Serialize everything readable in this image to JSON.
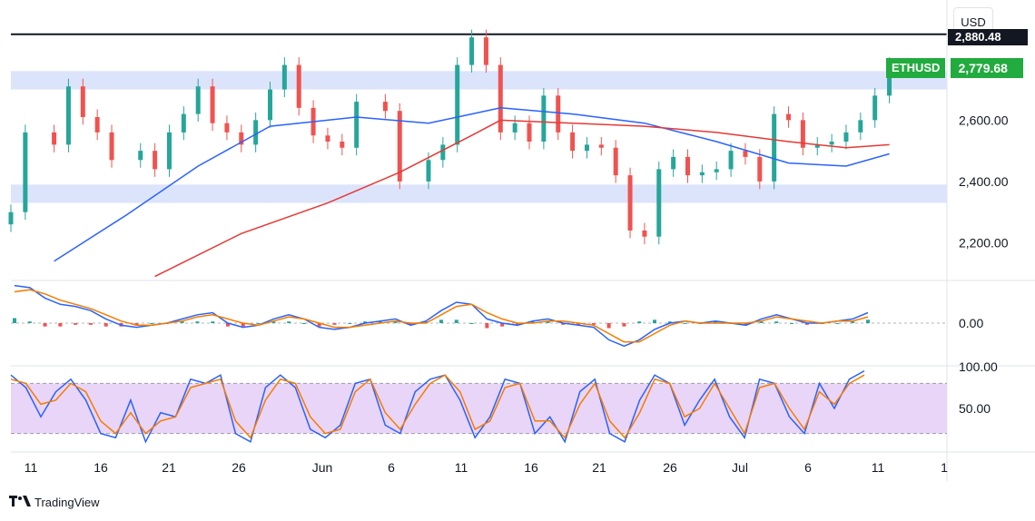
{
  "symbol": "ETHUSD",
  "currency": "USD",
  "last_price_label": "2,779.68",
  "resistance_label": "2,880.48",
  "brand": "TradingView",
  "colors": {
    "up": "#26a69a",
    "down": "#ef5350",
    "tag": "#22ab3f",
    "ma_fast": "#2962ff",
    "ma_slow": "#e53935",
    "zone": "#dbe4fb",
    "stoch_fill": "#e9d5f8"
  },
  "chart_data": [
    {
      "type": "candlestick",
      "title": "ETHUSD",
      "y_ticks": [
        "2,200.00",
        "2,400.00",
        "2,600.00"
      ],
      "ylim": [
        2080,
        2980
      ],
      "x_ticks": [
        "11",
        "16",
        "21",
        "26",
        "Jun",
        "6",
        "11",
        "16",
        "21",
        "26",
        "Jul",
        "6",
        "11",
        "1"
      ],
      "resistance_line": 2880,
      "zones": [
        {
          "from": 2700,
          "to": 2760
        },
        {
          "from": 2330,
          "to": 2390
        }
      ],
      "close_series": [
        {
          "date": "May 10",
          "close": 2300
        },
        {
          "date": "May 11",
          "close": 2560
        },
        {
          "date": "May 13",
          "close": 2520
        },
        {
          "date": "May 14",
          "close": 2710
        },
        {
          "date": "May 15",
          "close": 2610
        },
        {
          "date": "May 16",
          "close": 2560
        },
        {
          "date": "May 17",
          "close": 2470
        },
        {
          "date": "May 19",
          "close": 2500
        },
        {
          "date": "May 20",
          "close": 2440
        },
        {
          "date": "May 21",
          "close": 2560
        },
        {
          "date": "May 22",
          "close": 2620
        },
        {
          "date": "May 23",
          "close": 2710
        },
        {
          "date": "May 24",
          "close": 2590
        },
        {
          "date": "May 25",
          "close": 2560
        },
        {
          "date": "May 26",
          "close": 2520
        },
        {
          "date": "May 27",
          "close": 2600
        },
        {
          "date": "May 28",
          "close": 2700
        },
        {
          "date": "May 29",
          "close": 2780
        },
        {
          "date": "May 30",
          "close": 2640
        },
        {
          "date": "May 31",
          "close": 2550
        },
        {
          "date": "Jun 1",
          "close": 2530
        },
        {
          "date": "Jun 2",
          "close": 2510
        },
        {
          "date": "Jun 3",
          "close": 2660
        },
        {
          "date": "Jun 5",
          "close": 2630
        },
        {
          "date": "Jun 6",
          "close": 2400
        },
        {
          "date": "Jun 8",
          "close": 2470
        },
        {
          "date": "Jun 9",
          "close": 2520
        },
        {
          "date": "Jun 10",
          "close": 2780
        },
        {
          "date": "Jun 11",
          "close": 2870
        },
        {
          "date": "Jun 12",
          "close": 2780
        },
        {
          "date": "Jun 13",
          "close": 2560
        },
        {
          "date": "Jun 14",
          "close": 2590
        },
        {
          "date": "Jun 15",
          "close": 2530
        },
        {
          "date": "Jun 16",
          "close": 2680
        },
        {
          "date": "Jun 17",
          "close": 2560
        },
        {
          "date": "Jun 18",
          "close": 2500
        },
        {
          "date": "Jun 19",
          "close": 2520
        },
        {
          "date": "Jun 20",
          "close": 2510
        },
        {
          "date": "Jun 21",
          "close": 2420
        },
        {
          "date": "Jun 22",
          "close": 2240
        },
        {
          "date": "Jun 23",
          "close": 2220
        },
        {
          "date": "Jun 24",
          "close": 2440
        },
        {
          "date": "Jun 25",
          "close": 2480
        },
        {
          "date": "Jun 26",
          "close": 2420
        },
        {
          "date": "Jun 27",
          "close": 2430
        },
        {
          "date": "Jun 28",
          "close": 2440
        },
        {
          "date": "Jun 29",
          "close": 2500
        },
        {
          "date": "Jun 30",
          "close": 2480
        },
        {
          "date": "Jul 1",
          "close": 2400
        },
        {
          "date": "Jul 2",
          "close": 2620
        },
        {
          "date": "Jul 3",
          "close": 2600
        },
        {
          "date": "Jul 4",
          "close": 2510
        },
        {
          "date": "Jul 5",
          "close": 2520
        },
        {
          "date": "Jul 6",
          "close": 2530
        },
        {
          "date": "Jul 7",
          "close": 2560
        },
        {
          "date": "Jul 8",
          "close": 2600
        },
        {
          "date": "Jul 9",
          "close": 2680
        },
        {
          "date": "Jul 10",
          "close": 2779.68
        }
      ],
      "series": [
        {
          "color": "#2962ff",
          "points": [
            {
              "date": "May 13",
              "value": 2140
            },
            {
              "date": "May 18",
              "value": 2290
            },
            {
              "date": "May 23",
              "value": 2450
            },
            {
              "date": "May 28",
              "value": 2580
            },
            {
              "date": "Jun 3",
              "value": 2610
            },
            {
              "date": "Jun 8",
              "value": 2590
            },
            {
              "date": "Jun 11",
              "value": 2620
            },
            {
              "date": "Jun 13",
              "value": 2640
            },
            {
              "date": "Jun 18",
              "value": 2620
            },
            {
              "date": "Jun 23",
              "value": 2590
            },
            {
              "date": "Jun 28",
              "value": 2530
            },
            {
              "date": "Jul 3",
              "value": 2460
            },
            {
              "date": "Jul 7",
              "value": 2450
            },
            {
              "date": "Jul 10",
              "value": 2490
            }
          ]
        },
        {
          "color": "#e53935",
          "points": [
            {
              "date": "May 20",
              "value": 2090
            },
            {
              "date": "May 26",
              "value": 2230
            },
            {
              "date": "Jun 1",
              "value": 2330
            },
            {
              "date": "Jun 6",
              "value": 2430
            },
            {
              "date": "Jun 11",
              "value": 2550
            },
            {
              "date": "Jun 13",
              "value": 2600
            },
            {
              "date": "Jun 18",
              "value": 2590
            },
            {
              "date": "Jun 23",
              "value": 2580
            },
            {
              "date": "Jun 28",
              "value": 2560
            },
            {
              "date": "Jul 3",
              "value": 2530
            },
            {
              "date": "Jul 7",
              "value": 2510
            },
            {
              "date": "Jul 10",
              "value": 2520
            }
          ]
        }
      ]
    },
    {
      "type": "line",
      "y_ticks": [
        "0.00"
      ],
      "ylim": [
        -1,
        1
      ],
      "zero_line": 0,
      "series": [
        {
          "color": "#2962ff",
          "values": [
            0.9,
            0.85,
            0.6,
            0.45,
            0.4,
            0.3,
            0.1,
            -0.05,
            -0.1,
            -0.05,
            0.0,
            0.1,
            0.2,
            0.25,
            0.0,
            -0.1,
            -0.05,
            0.1,
            0.2,
            0.1,
            -0.1,
            -0.15,
            -0.1,
            0.0,
            0.05,
            0.1,
            -0.05,
            0.05,
            0.3,
            0.5,
            0.45,
            0.1,
            0.0,
            -0.05,
            0.05,
            0.1,
            0.0,
            -0.05,
            -0.1,
            -0.4,
            -0.55,
            -0.4,
            -0.15,
            0.0,
            0.05,
            0.0,
            0.05,
            0.0,
            -0.05,
            0.1,
            0.2,
            0.1,
            0.0,
            0.0,
            0.05,
            0.1,
            0.25
          ]
        },
        {
          "color": "#f57c00",
          "values": [
            0.75,
            0.8,
            0.7,
            0.55,
            0.45,
            0.35,
            0.2,
            0.05,
            -0.05,
            -0.05,
            0.0,
            0.05,
            0.15,
            0.2,
            0.1,
            0.0,
            -0.05,
            0.05,
            0.15,
            0.1,
            0.0,
            -0.1,
            -0.1,
            -0.05,
            0.0,
            0.05,
            0.0,
            0.0,
            0.2,
            0.4,
            0.45,
            0.25,
            0.1,
            0.0,
            0.0,
            0.05,
            0.05,
            0.0,
            -0.05,
            -0.25,
            -0.45,
            -0.45,
            -0.25,
            -0.05,
            0.05,
            0.0,
            0.0,
            0.0,
            0.0,
            0.05,
            0.15,
            0.1,
            0.05,
            0.0,
            0.05,
            0.05,
            0.15
          ]
        }
      ]
    },
    {
      "type": "line",
      "y_ticks": [
        "100.00",
        "50.00"
      ],
      "ylim": [
        0,
        100
      ],
      "band": [
        20,
        80
      ],
      "series": [
        {
          "color": "#2962ff",
          "values": [
            90,
            75,
            40,
            70,
            85,
            60,
            20,
            15,
            60,
            10,
            45,
            40,
            85,
            80,
            90,
            20,
            10,
            75,
            90,
            75,
            25,
            15,
            30,
            80,
            85,
            30,
            20,
            70,
            85,
            90,
            60,
            15,
            40,
            85,
            80,
            20,
            40,
            10,
            70,
            85,
            20,
            10,
            60,
            90,
            80,
            30,
            60,
            85,
            40,
            15,
            85,
            80,
            40,
            20,
            80,
            50,
            85,
            95
          ]
        },
        {
          "color": "#f57c00",
          "values": [
            85,
            80,
            55,
            60,
            80,
            70,
            35,
            20,
            45,
            20,
            35,
            40,
            75,
            80,
            85,
            35,
            15,
            60,
            85,
            80,
            40,
            20,
            25,
            70,
            85,
            45,
            25,
            55,
            80,
            90,
            70,
            25,
            35,
            75,
            80,
            35,
            35,
            15,
            55,
            80,
            35,
            15,
            45,
            85,
            80,
            40,
            50,
            80,
            50,
            20,
            75,
            80,
            50,
            25,
            70,
            55,
            80,
            90
          ]
        }
      ]
    }
  ]
}
